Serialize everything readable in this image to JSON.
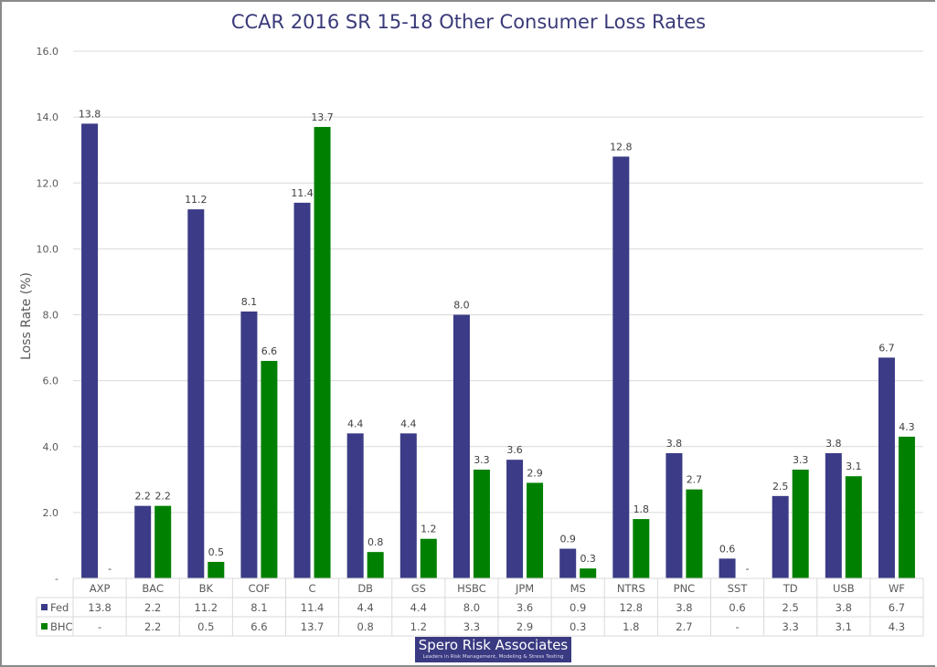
{
  "chart_data": {
    "type": "bar",
    "title": "CCAR 2016 SR 15-18 Other Consumer Loss Rates",
    "xlabel": "",
    "ylabel": "Loss Rate (%)",
    "ylim": [
      0,
      16
    ],
    "yticks": [
      0,
      2,
      4,
      6,
      8,
      10,
      12,
      14,
      16
    ],
    "ytick_labels": [
      "-",
      "2.0",
      "4.0",
      "6.0",
      "8.0",
      "10.0",
      "12.0",
      "14.0",
      "16.0"
    ],
    "grid": true,
    "legend": "data-table-below",
    "categories": [
      "AXP",
      "BAC",
      "BK",
      "COF",
      "C",
      "DB",
      "GS",
      "HSBC",
      "JPM",
      "MS",
      "NTRS",
      "PNC",
      "SST",
      "TD",
      "USB",
      "WF"
    ],
    "series": [
      {
        "name": "Fed",
        "color": "#3b3b87",
        "values": [
          13.8,
          2.2,
          11.2,
          8.1,
          11.4,
          4.4,
          4.4,
          8.0,
          3.6,
          0.9,
          12.8,
          3.8,
          0.6,
          2.5,
          3.8,
          6.7
        ],
        "labels": [
          "13.8",
          "2.2",
          "11.2",
          "8.1",
          "11.4",
          "4.4",
          "4.4",
          "8.0",
          "3.6",
          "0.9",
          "12.8",
          "3.8",
          "0.6",
          "2.5",
          "3.8",
          "6.7"
        ]
      },
      {
        "name": "BHC",
        "color": "#008000",
        "values": [
          0,
          2.2,
          0.5,
          6.6,
          13.7,
          0.8,
          1.2,
          3.3,
          2.9,
          0.3,
          1.8,
          2.7,
          0,
          3.3,
          3.1,
          4.3
        ],
        "labels": [
          "-",
          "2.2",
          "0.5",
          "6.6",
          "13.7",
          "0.8",
          "1.2",
          "3.3",
          "2.9",
          "0.3",
          "1.8",
          "2.7",
          "-",
          "3.3",
          "3.1",
          "4.3"
        ]
      }
    ]
  },
  "logo": {
    "name": "Spero Risk Associates",
    "tagline": "Leaders in Risk Management, Modeling & Stress Testing"
  }
}
